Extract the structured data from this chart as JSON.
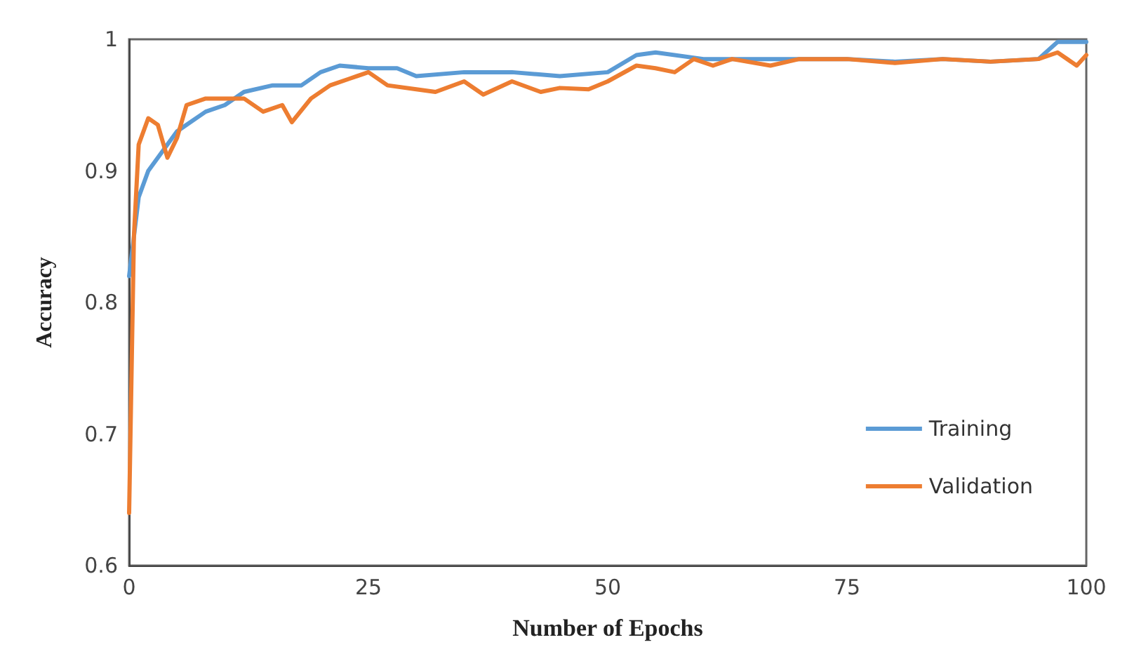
{
  "chart_data": {
    "type": "line",
    "xlabel": "Number of Epochs",
    "ylabel": "Accuracy",
    "xlim": [
      0,
      100
    ],
    "xticks": [
      0,
      25,
      50,
      75,
      100
    ],
    "ylim": [
      0.6,
      1
    ],
    "yticks": [
      0.6,
      0.7,
      0.8,
      0.9,
      1
    ],
    "grid": false,
    "legend": "bottom right",
    "line_style": "solid",
    "marker": "none",
    "series": [
      {
        "name": "Training",
        "color": "#5b9bd5",
        "x": [
          0,
          1,
          2,
          3,
          5,
          8,
          10,
          12,
          15,
          18,
          20,
          22,
          25,
          28,
          30,
          35,
          40,
          45,
          50,
          53,
          55,
          60,
          65,
          70,
          75,
          80,
          85,
          90,
          95,
          97,
          100
        ],
        "values": [
          0.82,
          0.88,
          0.9,
          0.91,
          0.93,
          0.945,
          0.95,
          0.96,
          0.965,
          0.965,
          0.975,
          0.98,
          0.978,
          0.978,
          0.972,
          0.975,
          0.975,
          0.972,
          0.975,
          0.988,
          0.99,
          0.985,
          0.985,
          0.985,
          0.985,
          0.983,
          0.985,
          0.983,
          0.985,
          0.998,
          0.998
        ]
      },
      {
        "name": "Validation",
        "color": "#ed7d31",
        "x": [
          0,
          0.5,
          1,
          2,
          3,
          4,
          5,
          6,
          8,
          10,
          12,
          14,
          16,
          17,
          19,
          21,
          23,
          25,
          27,
          30,
          32,
          35,
          37,
          40,
          43,
          45,
          48,
          50,
          53,
          55,
          57,
          59,
          61,
          63,
          67,
          70,
          75,
          80,
          85,
          90,
          95,
          97,
          99,
          100
        ],
        "values": [
          0.64,
          0.85,
          0.92,
          0.94,
          0.935,
          0.91,
          0.925,
          0.95,
          0.955,
          0.955,
          0.955,
          0.945,
          0.95,
          0.937,
          0.955,
          0.965,
          0.97,
          0.975,
          0.965,
          0.962,
          0.96,
          0.968,
          0.958,
          0.968,
          0.96,
          0.963,
          0.962,
          0.968,
          0.98,
          0.978,
          0.975,
          0.985,
          0.98,
          0.985,
          0.98,
          0.985,
          0.985,
          0.982,
          0.985,
          0.983,
          0.985,
          0.99,
          0.98,
          0.988
        ]
      }
    ]
  }
}
